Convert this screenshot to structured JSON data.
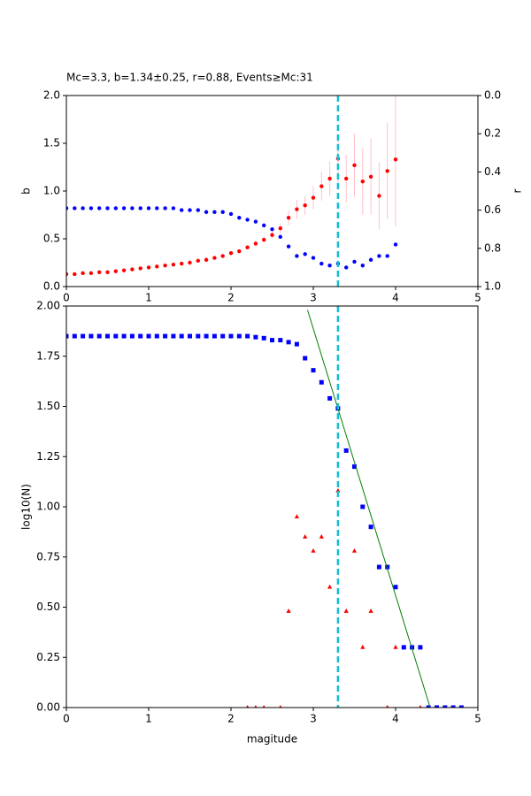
{
  "chart_data": [
    {
      "type": "scatter",
      "title": "Mc=3.3, b=1.34±0.25, r=0.88, Events≥Mc:31",
      "ylabel": "b",
      "y2label": "r",
      "x": [
        0,
        0.1,
        0.2,
        0.3,
        0.4,
        0.5,
        0.6,
        0.7,
        0.8,
        0.9,
        1.0,
        1.1,
        1.2,
        1.3,
        1.4,
        1.5,
        1.6,
        1.7,
        1.8,
        1.9,
        2.0,
        2.1,
        2.2,
        2.3,
        2.4,
        2.5,
        2.6,
        2.7,
        2.8,
        2.9,
        3.0,
        3.1,
        3.2,
        3.3,
        3.4,
        3.5,
        3.6,
        3.7,
        3.8,
        3.9,
        4.0
      ],
      "xlim": [
        0,
        5
      ],
      "xticks": [
        0,
        1,
        2,
        3,
        4,
        5
      ],
      "ylim": [
        0,
        2
      ],
      "yticks": [
        {
          "value": 0,
          "label": "0.0"
        },
        {
          "value": 0.5,
          "label": "0.5"
        },
        {
          "value": 1,
          "label": "1.0"
        },
        {
          "value": 1.5,
          "label": "1.5"
        },
        {
          "value": 2,
          "label": "2.0"
        }
      ],
      "y2lim": [
        1,
        0
      ],
      "y2_inverted": true,
      "y2ticks": [
        {
          "value": 0,
          "label": "0.0"
        },
        {
          "value": 0.2,
          "label": "0.2"
        },
        {
          "value": 0.4,
          "label": "0.4"
        },
        {
          "value": 0.6,
          "label": "0.6"
        },
        {
          "value": 0.8,
          "label": "0.8"
        },
        {
          "value": 1,
          "label": "1.0"
        }
      ],
      "vline": 3.3,
      "vline_color": "#17becf",
      "series": [
        {
          "color": "#ff0000",
          "marker": "o",
          "error_color": "#ffc0cb",
          "values": [
            0.13,
            0.13,
            0.14,
            0.14,
            0.15,
            0.15,
            0.16,
            0.17,
            0.18,
            0.19,
            0.2,
            0.21,
            0.22,
            0.23,
            0.24,
            0.25,
            0.27,
            0.28,
            0.3,
            0.32,
            0.35,
            0.37,
            0.41,
            0.45,
            0.49,
            0.54,
            0.61,
            0.72,
            0.81,
            0.85,
            0.93,
            1.05,
            1.13,
            1.34,
            1.13,
            1.27,
            1.1,
            1.15,
            0.95,
            1.21,
            1.33
          ],
          "errors": [
            0.01,
            0.01,
            0.01,
            0.01,
            0.01,
            0.01,
            0.01,
            0.01,
            0.01,
            0.01,
            0.01,
            0.01,
            0.01,
            0.01,
            0.01,
            0.01,
            0.01,
            0.01,
            0.01,
            0.02,
            0.02,
            0.02,
            0.02,
            0.03,
            0.03,
            0.04,
            0.05,
            0.08,
            0.1,
            0.1,
            0.12,
            0.15,
            0.18,
            0.25,
            0.25,
            0.33,
            0.35,
            0.4,
            0.35,
            0.5,
            0.7
          ]
        },
        {
          "color": "#0000ff",
          "marker": "o",
          "axis": "y2",
          "values": [
            0.59,
            0.59,
            0.59,
            0.59,
            0.59,
            0.59,
            0.59,
            0.59,
            0.59,
            0.59,
            0.59,
            0.59,
            0.59,
            0.59,
            0.6,
            0.6,
            0.6,
            0.61,
            0.61,
            0.61,
            0.62,
            0.64,
            0.65,
            0.66,
            0.68,
            0.7,
            0.74,
            0.79,
            0.84,
            0.83,
            0.85,
            0.88,
            0.89,
            0.88,
            0.9,
            0.87,
            0.89,
            0.86,
            0.84,
            0.84,
            0.78
          ]
        }
      ]
    },
    {
      "type": "scatter",
      "xlabel": "magitude",
      "ylabel": "log10(N)",
      "xlim": [
        0,
        5
      ],
      "xticks": [
        0,
        1,
        2,
        3,
        4,
        5
      ],
      "ylim": [
        0,
        2
      ],
      "yticks": [
        {
          "value": 0,
          "label": "0.00"
        },
        {
          "value": 0.25,
          "label": "0.25"
        },
        {
          "value": 0.5,
          "label": "0.50"
        },
        {
          "value": 0.75,
          "label": "0.75"
        },
        {
          "value": 1,
          "label": "1.00"
        },
        {
          "value": 1.25,
          "label": "1.25"
        },
        {
          "value": 1.5,
          "label": "1.50"
        },
        {
          "value": 1.75,
          "label": "1.75"
        },
        {
          "value": 2,
          "label": "2.00"
        }
      ],
      "vline": 3.3,
      "vline_color": "#17becf",
      "series": [
        {
          "color": "#0000ff",
          "marker": "s",
          "x": [
            0,
            0.1,
            0.2,
            0.3,
            0.4,
            0.5,
            0.6,
            0.7,
            0.8,
            0.9,
            1.0,
            1.1,
            1.2,
            1.3,
            1.4,
            1.5,
            1.6,
            1.7,
            1.8,
            1.9,
            2.0,
            2.1,
            2.2,
            2.3,
            2.4,
            2.5,
            2.6,
            2.7,
            2.8,
            2.9,
            3.0,
            3.1,
            3.2,
            3.3,
            3.4,
            3.5,
            3.6,
            3.7,
            3.8,
            3.9,
            4.0,
            4.1,
            4.2,
            4.3,
            4.4,
            4.5,
            4.6,
            4.7,
            4.8
          ],
          "values": [
            1.85,
            1.85,
            1.85,
            1.85,
            1.85,
            1.85,
            1.85,
            1.85,
            1.85,
            1.85,
            1.85,
            1.85,
            1.85,
            1.85,
            1.85,
            1.85,
            1.85,
            1.85,
            1.85,
            1.85,
            1.85,
            1.85,
            1.85,
            1.845,
            1.84,
            1.83,
            1.83,
            1.82,
            1.81,
            1.74,
            1.68,
            1.62,
            1.54,
            1.49,
            1.28,
            1.2,
            1.0,
            0.9,
            0.7,
            0.7,
            0.6,
            0.3,
            0.3,
            0.3,
            0,
            0,
            0,
            0,
            0
          ]
        },
        {
          "color": "#ff0000",
          "marker": "^",
          "x": [
            2.2,
            2.3,
            2.4,
            2.6,
            2.7,
            2.8,
            2.9,
            3.0,
            3.1,
            3.2,
            3.3,
            3.4,
            3.5,
            3.6,
            3.7,
            3.9,
            4.0,
            4.3
          ],
          "values": [
            0,
            0,
            0,
            0,
            0.48,
            0.95,
            0.85,
            0.78,
            0.85,
            0.6,
            1.08,
            0.48,
            0.78,
            0.3,
            0.48,
            0,
            0.3,
            0
          ]
        },
        {
          "color": "#008000",
          "marker": "line",
          "x": [
            2.93,
            4.42
          ],
          "values": [
            1.98,
            0
          ]
        }
      ]
    }
  ]
}
